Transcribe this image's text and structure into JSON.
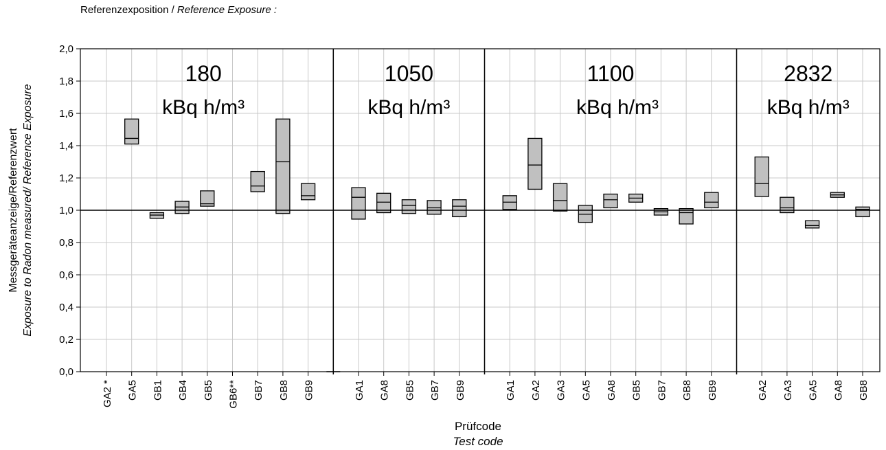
{
  "header": {
    "label_de": "Referenzexposition / ",
    "label_en": "Reference Exposure :"
  },
  "chart_data": {
    "type": "box",
    "ylabel_de": "Messgeräteanzeige/Referenzwert",
    "ylabel_en": "Exposure to Radon measured/ Reference Exposure",
    "xlabel_de": "Prüfcode",
    "xlabel_en": "Test code",
    "ylim": [
      0,
      2.0
    ],
    "yticks": [
      "0,0",
      "0,2",
      "0,4",
      "0,6",
      "0,8",
      "1,0",
      "1,2",
      "1,4",
      "1,6",
      "1,8",
      "2,0"
    ],
    "reference_line": 1.0,
    "grid": true,
    "groups": [
      {
        "value": "180",
        "unit": "kBq h/m³",
        "categories": [
          "GA2 *",
          "GA5",
          "GB1",
          "GB4",
          "GB5",
          "GB6**",
          "GB7",
          "GB8",
          "GB9"
        ],
        "boxes": [
          null,
          {
            "low": 1.41,
            "mid": 1.445,
            "high": 1.565
          },
          {
            "low": 0.95,
            "mid": 0.97,
            "high": 0.985
          },
          {
            "low": 0.98,
            "mid": 1.02,
            "high": 1.055
          },
          {
            "low": 1.025,
            "mid": 1.04,
            "high": 1.12
          },
          null,
          {
            "low": 1.115,
            "mid": 1.15,
            "high": 1.24
          },
          {
            "low": 0.98,
            "mid": 1.3,
            "high": 1.565
          },
          {
            "low": 1.065,
            "mid": 1.09,
            "high": 1.165
          }
        ]
      },
      {
        "value": "1050",
        "unit": "kBq h/m³",
        "categories": [
          "GA1",
          "GA8",
          "GB5",
          "GB7",
          "GB9"
        ],
        "boxes": [
          {
            "low": 0.945,
            "mid": 1.08,
            "high": 1.14
          },
          {
            "low": 0.985,
            "mid": 1.05,
            "high": 1.105
          },
          {
            "low": 0.98,
            "mid": 1.03,
            "high": 1.065
          },
          {
            "low": 0.975,
            "mid": 1.015,
            "high": 1.06
          },
          {
            "low": 0.96,
            "mid": 1.025,
            "high": 1.065
          }
        ]
      },
      {
        "value": "1100",
        "unit": "kBq h/m³",
        "categories": [
          "GA1",
          "GA2",
          "GA3",
          "GA5",
          "GA8",
          "GB5",
          "GB7",
          "GB8",
          "GB9"
        ],
        "boxes": [
          {
            "low": 1.005,
            "mid": 1.05,
            "high": 1.09
          },
          {
            "low": 1.13,
            "mid": 1.28,
            "high": 1.445
          },
          {
            "low": 0.995,
            "mid": 1.06,
            "high": 1.165
          },
          {
            "low": 0.925,
            "mid": 0.975,
            "high": 1.03
          },
          {
            "low": 1.015,
            "mid": 1.065,
            "high": 1.1
          },
          {
            "low": 1.05,
            "mid": 1.075,
            "high": 1.1
          },
          {
            "low": 0.97,
            "mid": 0.99,
            "high": 1.01
          },
          {
            "low": 0.915,
            "mid": 0.985,
            "high": 1.01
          },
          {
            "low": 1.015,
            "mid": 1.05,
            "high": 1.11
          }
        ]
      },
      {
        "value": "2832",
        "unit": "kBq h/m³",
        "categories": [
          "GA2",
          "GA3",
          "GA5",
          "GA8",
          "GB8"
        ],
        "boxes": [
          {
            "low": 1.085,
            "mid": 1.165,
            "high": 1.33
          },
          {
            "low": 0.985,
            "mid": 1.015,
            "high": 1.08
          },
          {
            "low": 0.89,
            "mid": 0.905,
            "high": 0.935
          },
          {
            "low": 1.08,
            "mid": 1.095,
            "high": 1.11
          },
          {
            "low": 0.96,
            "mid": 1.005,
            "high": 1.02
          }
        ]
      }
    ],
    "colors": {
      "box_fill": "#c0c0c0",
      "grid": "#c8c8c8",
      "axis": "#000000"
    }
  }
}
